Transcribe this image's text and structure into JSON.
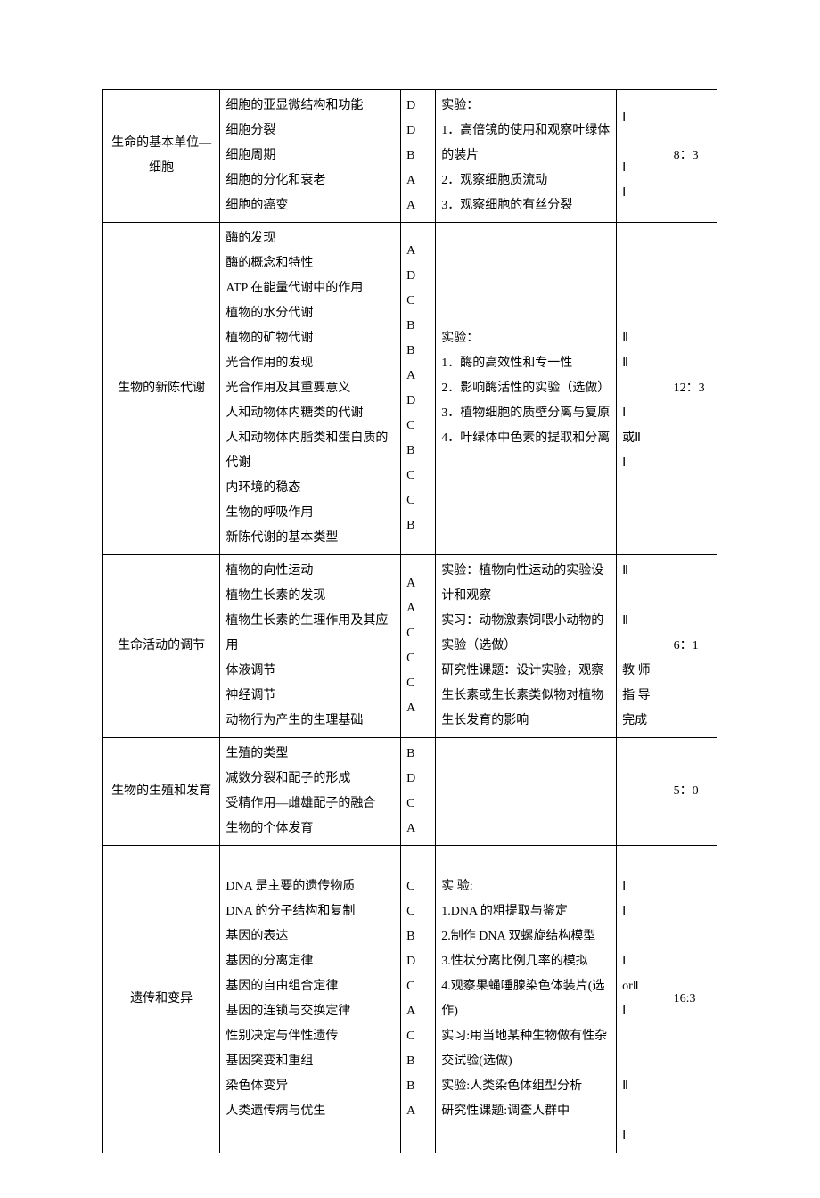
{
  "rows": [
    {
      "topic": "生命的基本单位—细胞",
      "knowledge": [
        "细胞的亚显微结构和功能",
        "细胞分裂",
        "细胞周期",
        "细胞的分化和衰老",
        "细胞的癌变"
      ],
      "levels": [
        "D",
        "D",
        "B",
        "A",
        "A"
      ],
      "exp": [
        "实验：",
        "1．高倍镜的使用和观察叶绿体的装片",
        "2．观察细胞质流动",
        "3．观察细胞的有丝分裂"
      ],
      "expLevels": [
        "Ⅰ",
        "",
        "Ⅰ",
        "Ⅰ"
      ],
      "ratio": "8：3"
    },
    {
      "topic": "生物的新陈代谢",
      "knowledge": [
        "酶的发现",
        "酶的概念和特性",
        "ATP 在能量代谢中的作用",
        "植物的水分代谢",
        "植物的矿物代谢",
        "光合作用的发现",
        "光合作用及其重要意义",
        "人和动物体内糖类的代谢",
        "人和动物体内脂类和蛋白质的代谢",
        "内环境的稳态",
        "生物的呼吸作用",
        "新陈代谢的基本类型"
      ],
      "levels": [
        "A",
        "D",
        "C",
        "B",
        "B",
        "A",
        "D",
        "C",
        "B",
        "C",
        "C",
        "B"
      ],
      "exp": [
        "实验：",
        "1．酶的高效性和专一性",
        "2．影响酶活性的实验（选做）",
        "3．植物细胞的质壁分离与复原",
        "4．叶绿体中色素的提取和分离"
      ],
      "expLevels": [
        "",
        "Ⅱ",
        "Ⅱ",
        "",
        "Ⅰ",
        "或Ⅱ",
        "Ⅰ"
      ],
      "ratio": "12：3"
    },
    {
      "topic": "生命活动的调节",
      "knowledge": [
        "植物的向性运动",
        "植物生长素的发现",
        "植物生长素的生理作用及其应用",
        "体液调节",
        "神经调节",
        "动物行为产生的生理基础"
      ],
      "levels": [
        "A",
        "A",
        "C",
        "C",
        "C",
        "A"
      ],
      "exp": [
        "实验：植物向性运动的实验设计和观察",
        "实习：动物激素饲喂小动物的实验（选做）",
        "研究性课题：设计实验，观察生长素或生长素类似物对植物生长发育的影响"
      ],
      "expLevels": [
        "Ⅱ",
        "",
        "Ⅱ",
        "",
        "教 师指 导完成"
      ],
      "ratio": "6：1"
    },
    {
      "topic": "生物的生殖和发育",
      "knowledge": [
        "生殖的类型",
        "减数分裂和配子的形成",
        "受精作用—雌雄配子的融合",
        "生物的个体发育"
      ],
      "levels": [
        "B",
        "D",
        "C",
        "A"
      ],
      "exp": [],
      "expLevels": [],
      "ratio": "5：0"
    },
    {
      "topic": "遗传和变异",
      "knowledge": [
        "DNA 是主要的遗传物质",
        "DNA 的分子结构和复制",
        "基因的表达",
        "基因的分离定律",
        "基因的自由组合定律",
        "基因的连锁与交换定律",
        "性别决定与伴性遗传",
        "基因突变和重组",
        "染色体变异",
        "人类遗传病与优生"
      ],
      "levels": [
        "C",
        "C",
        "B",
        "D",
        "C",
        "A",
        "C",
        "B",
        "B",
        "A"
      ],
      "exp": [
        "实 验:",
        "1.DNA 的粗提取与鉴定",
        "2.制作 DNA 双螺旋结构模型",
        "3.性状分离比例几率的模拟",
        "4.观察果蝇唾腺染色体装片(选作)",
        "实习:用当地某种生物做有性杂交试验(选做)",
        "实验:人类染色体组型分析",
        "研究性课题:调查人群中"
      ],
      "expLevels": [
        "",
        "Ⅰ",
        "Ⅰ",
        "",
        "Ⅰ",
        "orⅡ",
        "Ⅰ",
        "",
        "",
        "Ⅱ",
        "",
        "Ⅰ"
      ],
      "ratio": "16:3"
    }
  ]
}
